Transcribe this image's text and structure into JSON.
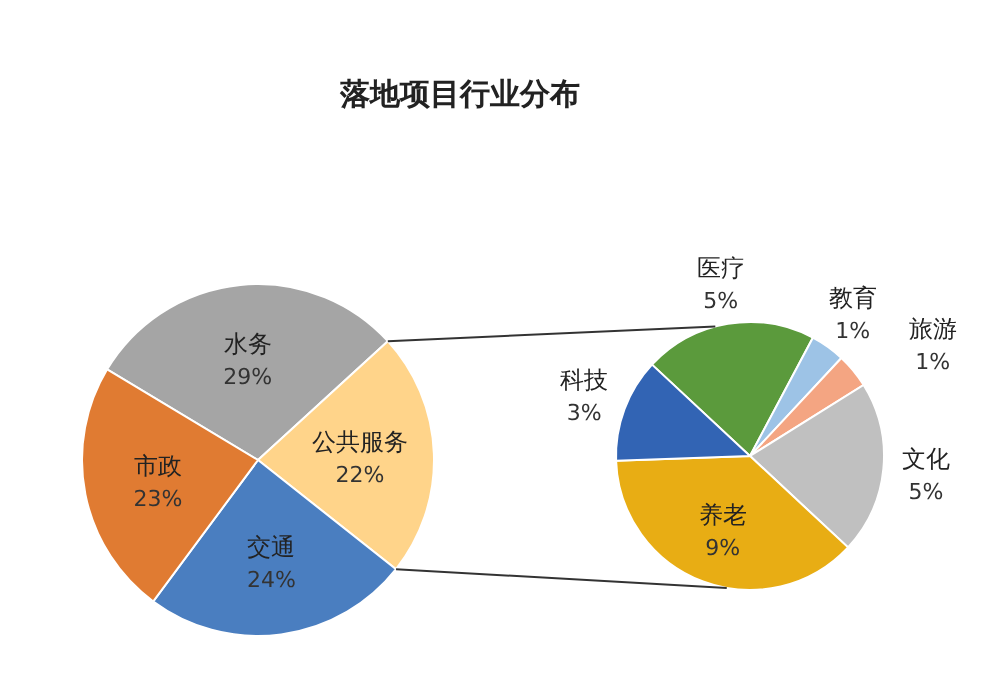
{
  "chart_data": [
    {
      "type": "pie",
      "title": "落地项目行业分布",
      "categories": [
        "水务",
        "公共服务",
        "交通",
        "市政"
      ],
      "values": [
        29,
        22,
        24,
        23
      ],
      "value_labels": [
        "29%",
        "22%",
        "24%",
        "23%"
      ],
      "colors": [
        "#a5a5a5",
        "#ffd48a",
        "#4a7ec0",
        "#e07b32"
      ]
    },
    {
      "type": "pie",
      "categories": [
        "医疗",
        "教育",
        "旅游",
        "文化",
        "养老",
        "科技"
      ],
      "values": [
        5,
        1,
        1,
        5,
        9,
        3
      ],
      "value_labels": [
        "5%",
        "1%",
        "1%",
        "5%",
        "9%",
        "3%"
      ],
      "colors": [
        "#5b9a3c",
        "#9dc3e6",
        "#f4a582",
        "#c0c0c0",
        "#e8ad14",
        "#3264b4"
      ]
    }
  ]
}
